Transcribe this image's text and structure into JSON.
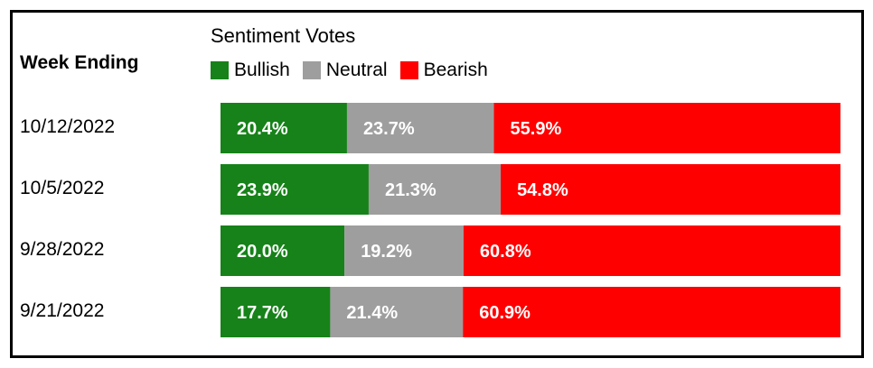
{
  "header": {
    "week_label": "Week Ending",
    "title": "Sentiment Votes"
  },
  "legend": [
    {
      "label": "Bullish",
      "color": "#168219"
    },
    {
      "label": "Neutral",
      "color": "#9e9e9e"
    },
    {
      "label": "Bearish",
      "color": "#fe0000"
    }
  ],
  "chart_data": {
    "type": "bar",
    "orientation": "horizontal-stacked-100",
    "title": "Sentiment Votes",
    "categories": [
      "10/12/2022",
      "10/5/2022",
      "9/28/2022",
      "9/21/2022"
    ],
    "series": [
      {
        "name": "Bullish",
        "values": [
          20.4,
          23.9,
          20.0,
          17.7
        ],
        "labels": [
          "20.4%",
          "23.9%",
          "20.0%",
          "17.7%"
        ]
      },
      {
        "name": "Neutral",
        "values": [
          23.7,
          21.3,
          19.2,
          21.4
        ],
        "labels": [
          "23.7%",
          "21.3%",
          "19.2%",
          "21.4%"
        ]
      },
      {
        "name": "Bearish",
        "values": [
          55.9,
          54.8,
          60.8,
          60.9
        ],
        "labels": [
          "55.9%",
          "54.8%",
          "60.8%",
          "60.9%"
        ]
      }
    ],
    "colors": [
      "#168219",
      "#9e9e9e",
      "#fe0000"
    ],
    "legend_position": "top"
  }
}
